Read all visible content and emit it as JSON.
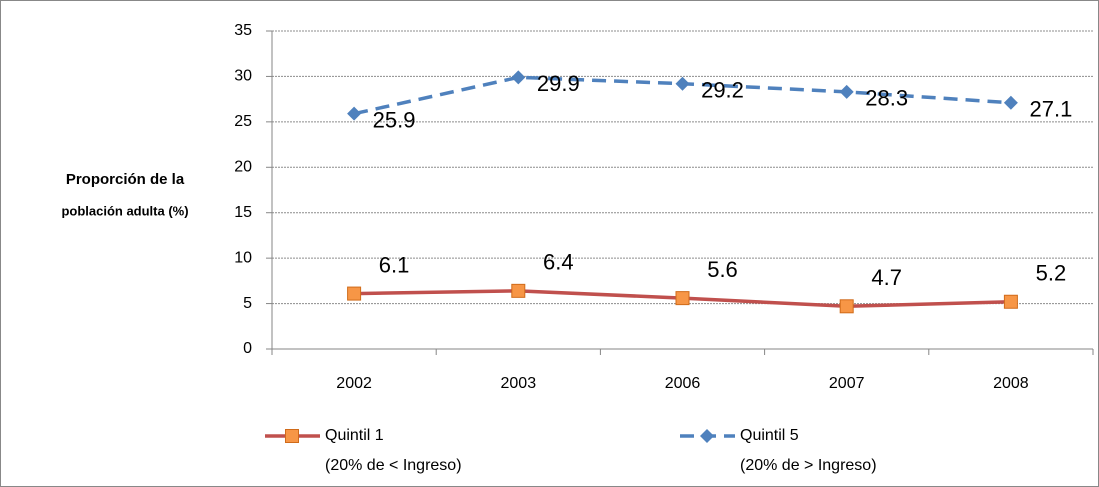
{
  "chart_data": {
    "type": "line",
    "ylabel": [
      "Proporción de la",
      "población adulta (%)"
    ],
    "categories": [
      "2002",
      "2003",
      "2006",
      "2007",
      "2008"
    ],
    "series": [
      {
        "name": [
          "Quintil 1",
          "(20% de < Ingreso)"
        ],
        "color": "#c0504d",
        "marker_color": "#f79646",
        "marker": "square",
        "dash": false,
        "values": [
          6.1,
          6.4,
          5.6,
          4.7,
          5.2
        ]
      },
      {
        "name": [
          "Quintil 5",
          "(20% de > Ingreso)"
        ],
        "color": "#4f81bd",
        "marker_color": "#4f81bd",
        "marker": "diamond",
        "dash": true,
        "values": [
          25.9,
          29.9,
          29.2,
          28.3,
          27.1
        ]
      }
    ],
    "ylim": [
      0,
      35
    ],
    "yticks": [
      0,
      5,
      10,
      15,
      20,
      25,
      30,
      35
    ],
    "grid": true,
    "legend": "bottom"
  }
}
